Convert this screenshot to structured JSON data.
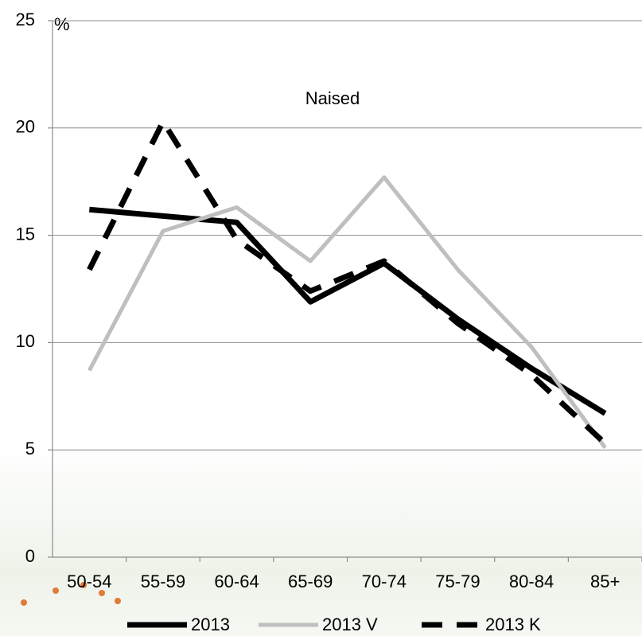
{
  "chart_data": {
    "type": "line",
    "y_label": "%",
    "annotation": "Naised",
    "categories": [
      "50-54",
      "55-59",
      "60-64",
      "65-69",
      "70-74",
      "75-79",
      "80-84",
      "85+"
    ],
    "series": [
      {
        "name": "2013",
        "color": "#000000",
        "dashed": false,
        "values": [
          16.2,
          15.9,
          15.6,
          11.9,
          13.7,
          11.1,
          8.8,
          6.7
        ]
      },
      {
        "name": "2013 V",
        "color": "#bfbfbf",
        "dashed": false,
        "values": [
          8.7,
          15.2,
          16.3,
          13.8,
          17.7,
          13.4,
          9.8,
          5.1
        ]
      },
      {
        "name": "2013 K",
        "color": "#000000",
        "dashed": true,
        "values": [
          13.4,
          20.3,
          14.8,
          12.4,
          13.8,
          10.9,
          8.5,
          5.3
        ]
      }
    ],
    "ylim": [
      0,
      25
    ],
    "yticks": [
      0,
      5,
      10,
      15,
      20,
      25
    ],
    "grid": true
  }
}
